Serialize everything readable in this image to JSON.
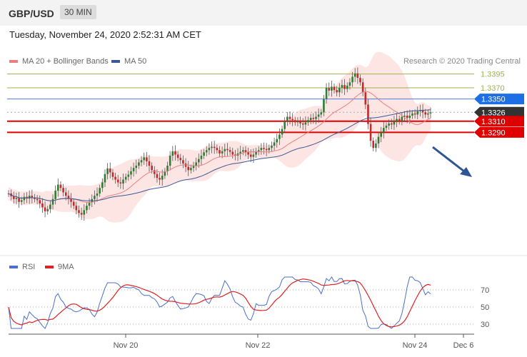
{
  "header": {
    "pair": "GBP/USD",
    "timeframe": "30 MIN"
  },
  "date_line": "Tuesday, November 24, 2020 2:52:31 AM CET",
  "legend": {
    "ma20": "MA 20 + Bollinger Bands",
    "ma50": "MA 50",
    "rsi": "RSI",
    "ma9": "9MA"
  },
  "credit": "Research © 2020 Trading Central",
  "colors": {
    "ma20": "#e88080",
    "ma50": "#3a5a95",
    "band_fill": "#fde0df",
    "bull": "#2e7d32",
    "bear": "#c62828",
    "resistance": "#9bb34d",
    "pivot_line": "#4a7fd6",
    "pivot_tag": "#1e6ee6",
    "support": "#e00000",
    "current": "#333333",
    "arrow": "#2f5597",
    "rsi": "#4a6fd0",
    "rsi_ma": "#dd2222"
  },
  "chart_data": [
    {
      "type": "candlestick",
      "pair": "GBP/USD",
      "timeframe": "30 MIN",
      "ylim": [
        1.3085,
        1.3415
      ],
      "levels": [
        {
          "label": "1.3395",
          "value": 1.3395,
          "kind": "resistance"
        },
        {
          "label": "1.3370",
          "value": 1.337,
          "kind": "resistance"
        },
        {
          "label": "1.3350",
          "value": 1.335,
          "kind": "pivot"
        },
        {
          "label": "1.3326",
          "value": 1.3326,
          "kind": "current"
        },
        {
          "label": "1.3310",
          "value": 1.331,
          "kind": "support"
        },
        {
          "label": "1.3290",
          "value": 1.329,
          "kind": "support"
        }
      ],
      "close_series": [
        1.318,
        1.3175,
        1.317,
        1.3172,
        1.3165,
        1.3168,
        1.3174,
        1.3171,
        1.3176,
        1.3173,
        1.317,
        1.3168,
        1.3162,
        1.3155,
        1.3148,
        1.3152,
        1.316,
        1.317,
        1.3185,
        1.3196,
        1.319,
        1.3182,
        1.3176,
        1.317,
        1.3165,
        1.3158,
        1.315,
        1.3145,
        1.3142,
        1.315,
        1.3158,
        1.3164,
        1.317,
        1.3176,
        1.318,
        1.319,
        1.32,
        1.3215,
        1.3225,
        1.3218,
        1.321,
        1.3205,
        1.32,
        1.3198,
        1.3205,
        1.321,
        1.3214,
        1.322,
        1.3226,
        1.323,
        1.3236,
        1.324,
        1.3245,
        1.3238,
        1.323,
        1.3222,
        1.3215,
        1.3208,
        1.3205,
        1.3212,
        1.322,
        1.323,
        1.3248,
        1.3256,
        1.325,
        1.3244,
        1.324,
        1.3234,
        1.3228,
        1.3222,
        1.3226,
        1.323,
        1.3236,
        1.3242,
        1.3248,
        1.3254,
        1.3258,
        1.3262,
        1.3264,
        1.3262,
        1.3258,
        1.3252,
        1.3256,
        1.326,
        1.3258,
        1.3255,
        1.325,
        1.3248,
        1.3252,
        1.3255,
        1.3258,
        1.3254,
        1.325,
        1.3246,
        1.325,
        1.3256,
        1.3258,
        1.3262,
        1.326,
        1.3258,
        1.3262,
        1.3266,
        1.3272,
        1.3278,
        1.3286,
        1.3296,
        1.331,
        1.3318,
        1.3314,
        1.3312,
        1.3308,
        1.331,
        1.3306,
        1.3304,
        1.3308,
        1.3312,
        1.3316,
        1.3314,
        1.3318,
        1.3322,
        1.3326,
        1.335,
        1.337,
        1.3365,
        1.3372,
        1.3366,
        1.3362,
        1.337,
        1.3375,
        1.3368,
        1.3374,
        1.338,
        1.339,
        1.3396,
        1.3388,
        1.338,
        1.3362,
        1.334,
        1.3305,
        1.3275,
        1.3262,
        1.327,
        1.3282,
        1.329,
        1.3298,
        1.3302,
        1.3306,
        1.3304,
        1.331,
        1.3314,
        1.331,
        1.3318,
        1.332,
        1.3316,
        1.332,
        1.3324,
        1.3322,
        1.3328,
        1.333,
        1.3326,
        1.3322,
        1.3324,
        1.3326
      ],
      "x_ticks": [
        "Nov 20",
        "Nov 22",
        "Nov 24",
        "Dec 6"
      ]
    },
    {
      "type": "line",
      "title": "RSI",
      "series": [
        {
          "name": "RSI"
        },
        {
          "name": "9MA"
        }
      ],
      "ylim": [
        20,
        85
      ],
      "y_ticks": [
        30,
        50,
        70
      ],
      "x_ticks": [
        "Nov 20",
        "Nov 22",
        "Nov 24",
        "Dec 6"
      ]
    }
  ]
}
